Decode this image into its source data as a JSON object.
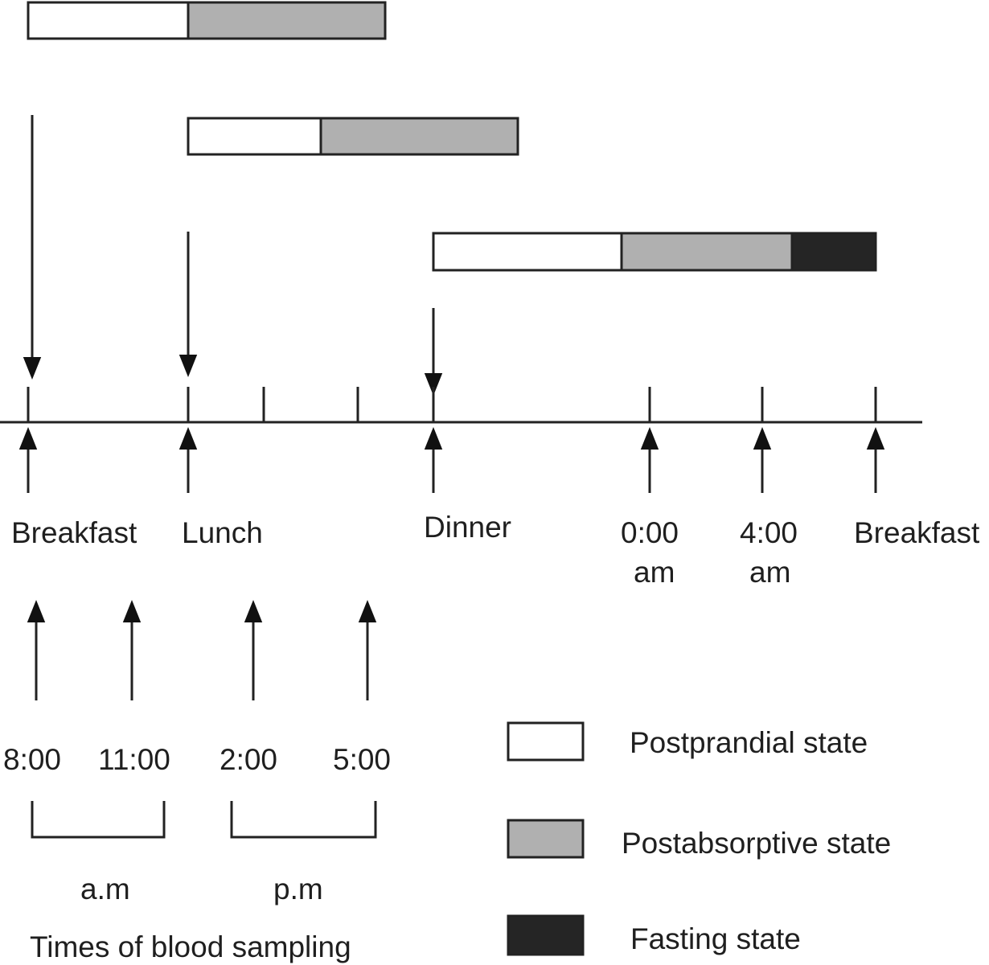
{
  "meal_bars": [
    {
      "meal": "Breakfast",
      "segments": [
        "postprandial",
        "postabsorptive"
      ]
    },
    {
      "meal": "Lunch",
      "segments": [
        "postprandial",
        "postabsorptive"
      ]
    },
    {
      "meal": "Dinner",
      "segments": [
        "postprandial",
        "postabsorptive",
        "fasting"
      ]
    }
  ],
  "state_colors": {
    "postprandial": "#ffffff",
    "postabsorptive": "#b0b0b0",
    "fasting": "#252525"
  },
  "timeline": {
    "labels": {
      "breakfast": "Breakfast",
      "lunch": "Lunch",
      "dinner": "Dinner",
      "midnight_time": "0:00",
      "midnight_suffix": "am",
      "four_time": "4:00",
      "four_suffix": "am",
      "next_breakfast": "Breakfast"
    }
  },
  "sampling": {
    "times": [
      "8:00",
      "11:00",
      "2:00",
      "5:00"
    ],
    "am_label": "a.m",
    "pm_label": "p.m",
    "caption": "Times of blood sampling"
  },
  "legend": {
    "postprandial": "Postprandial state",
    "postabsorptive": "Postabsorptive state",
    "fasting": "Fasting state"
  }
}
